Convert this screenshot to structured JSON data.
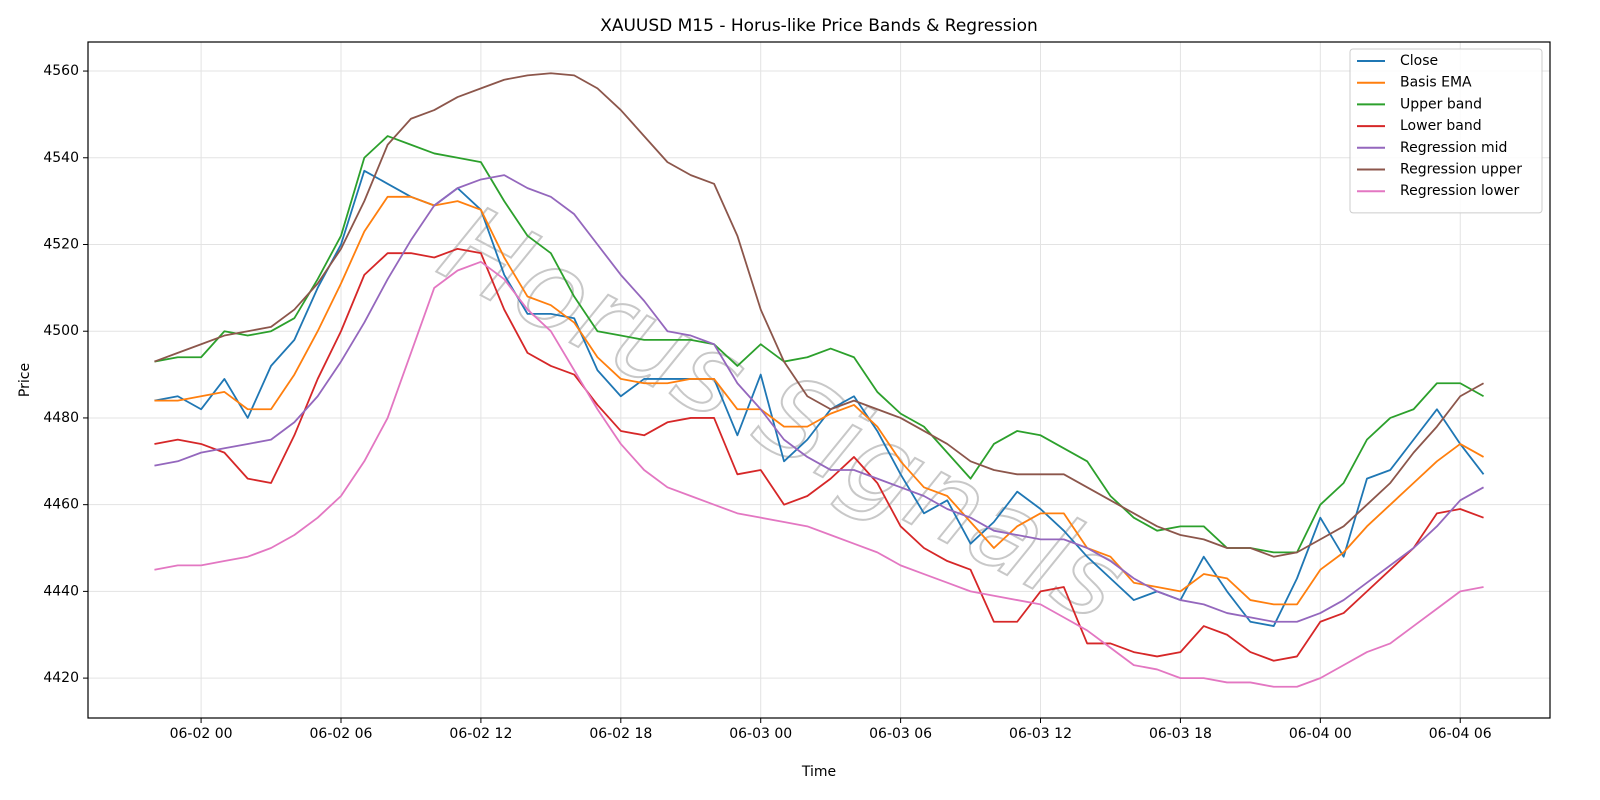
{
  "chart_data": {
    "type": "line",
    "title": "XAUUSD M15 - Horus-like Price Bands & Regression",
    "xlabel": "Time",
    "ylabel": "Price",
    "watermark": "Horus Signals",
    "grid": true,
    "legend": "upper right",
    "x": [
      "06-01 22",
      "06-01 23",
      "06-02 00",
      "06-02 01",
      "06-02 02",
      "06-02 03",
      "06-02 04",
      "06-02 05",
      "06-02 06",
      "06-02 07",
      "06-02 08",
      "06-02 09",
      "06-02 10",
      "06-02 11",
      "06-02 12",
      "06-02 13",
      "06-02 14",
      "06-02 15",
      "06-02 16",
      "06-02 17",
      "06-02 18",
      "06-02 19",
      "06-02 20",
      "06-02 21",
      "06-02 22",
      "06-02 23",
      "06-03 00",
      "06-03 01",
      "06-03 02",
      "06-03 03",
      "06-03 04",
      "06-03 05",
      "06-03 06",
      "06-03 07",
      "06-03 08",
      "06-03 09",
      "06-03 10",
      "06-03 11",
      "06-03 12",
      "06-03 13",
      "06-03 14",
      "06-03 15",
      "06-03 16",
      "06-03 17",
      "06-03 18",
      "06-03 19",
      "06-03 20",
      "06-03 21",
      "06-03 22",
      "06-03 23",
      "06-04 00",
      "06-04 01",
      "06-04 02",
      "06-04 03",
      "06-04 04",
      "06-04 05",
      "06-04 06",
      "06-04 07"
    ],
    "xticks": [
      "06-02 00",
      "06-02 06",
      "06-02 12",
      "06-02 18",
      "06-03 00",
      "06-03 06",
      "06-03 12",
      "06-03 18",
      "06-04 00",
      "06-04 06"
    ],
    "ylim": [
      4410.8,
      4566.7
    ],
    "yticks": [
      4420,
      4440,
      4460,
      4480,
      4500,
      4520,
      4540,
      4560
    ],
    "series": [
      {
        "name": "Close",
        "color": "#1f77b4",
        "values": [
          4484,
          4485,
          4482,
          4489,
          4480,
          4492,
          4498,
          4510,
          4520,
          4537,
          4534,
          4531,
          4529,
          4533,
          4528,
          4513,
          4504,
          4504,
          4503,
          4491,
          4485,
          4489,
          4489,
          4489,
          4489,
          4476,
          4490,
          4470,
          4475,
          4482,
          4485,
          4477,
          4467,
          4458,
          4461,
          4451,
          4456,
          4463,
          4459,
          4454,
          4448,
          4443,
          4438,
          4440,
          4438,
          4448,
          4440,
          4433,
          4432,
          4443,
          4457,
          4448,
          4466,
          4468,
          4475,
          4482,
          4474,
          4467
        ]
      },
      {
        "name": "Basis EMA",
        "color": "#ff7f0e",
        "values": [
          4484,
          4484,
          4485,
          4486,
          4482,
          4482,
          4490,
          4500,
          4511,
          4523,
          4531,
          4531,
          4529,
          4530,
          4528,
          4517,
          4508,
          4506,
          4502,
          4494,
          4489,
          4488,
          4488,
          4489,
          4489,
          4482,
          4482,
          4478,
          4478,
          4481,
          4483,
          4478,
          4470,
          4464,
          4462,
          4456,
          4450,
          4455,
          4458,
          4458,
          4450,
          4448,
          4442,
          4441,
          4440,
          4444,
          4443,
          4438,
          4437,
          4437,
          4445,
          4449,
          4455,
          4460,
          4465,
          4470,
          4474,
          4471
        ]
      },
      {
        "name": "Upper band",
        "color": "#2ca02c",
        "values": [
          4493,
          4494,
          4494,
          4500,
          4499,
          4500,
          4503,
          4512,
          4522,
          4540,
          4545,
          4543,
          4541,
          4540,
          4539,
          4530,
          4522,
          4518,
          4508,
          4500,
          4499,
          4498,
          4498,
          4498,
          4497,
          4492,
          4497,
          4493,
          4494,
          4496,
          4494,
          4486,
          4481,
          4478,
          4472,
          4466,
          4474,
          4477,
          4476,
          4473,
          4470,
          4462,
          4457,
          4454,
          4455,
          4455,
          4450,
          4450,
          4449,
          4449,
          4460,
          4465,
          4475,
          4480,
          4482,
          4488,
          4488,
          4485
        ]
      },
      {
        "name": "Lower band",
        "color": "#d62728",
        "values": [
          4474,
          4475,
          4474,
          4472,
          4466,
          4465,
          4476,
          4489,
          4500,
          4513,
          4518,
          4518,
          4517,
          4519,
          4518,
          4505,
          4495,
          4492,
          4490,
          4483,
          4477,
          4476,
          4479,
          4480,
          4480,
          4467,
          4468,
          4460,
          4462,
          4466,
          4471,
          4465,
          4455,
          4450,
          4447,
          4445,
          4433,
          4433,
          4440,
          4441,
          4428,
          4428,
          4426,
          4425,
          4426,
          4432,
          4430,
          4426,
          4424,
          4425,
          4433,
          4435,
          4440,
          4445,
          4450,
          4458,
          4459,
          4457
        ]
      },
      {
        "name": "Regression mid",
        "color": "#9467bd",
        "values": [
          4469,
          4470,
          4472,
          4473,
          4474,
          4475,
          4479,
          4485,
          4493,
          4502,
          4512,
          4521,
          4529,
          4533,
          4535,
          4536,
          4533,
          4531,
          4527,
          4520,
          4513,
          4507,
          4500,
          4499,
          4497,
          4488,
          4482,
          4475,
          4471,
          4468,
          4468,
          4466,
          4464,
          4462,
          4459,
          4457,
          4454,
          4453,
          4452,
          4452,
          4450,
          4447,
          4443,
          4440,
          4438,
          4437,
          4435,
          4434,
          4433,
          4433,
          4435,
          4438,
          4442,
          4446,
          4450,
          4455,
          4461,
          4464
        ]
      },
      {
        "name": "Regression upper",
        "color": "#8c564b",
        "values": [
          4493,
          4495,
          4497,
          4499,
          4500,
          4501,
          4505,
          4511,
          4519,
          4530,
          4543,
          4549,
          4551,
          4554,
          4556,
          4558,
          4559,
          4559.5,
          4559,
          4556,
          4551,
          4545,
          4539,
          4536,
          4534,
          4522,
          4505,
          4493,
          4485,
          4482,
          4484,
          4482,
          4480,
          4477,
          4474,
          4470,
          4468,
          4467,
          4467,
          4467,
          4464,
          4461,
          4458,
          4455,
          4453,
          4452,
          4450,
          4450,
          4448,
          4449,
          4452,
          4455,
          4460,
          4465,
          4472,
          4478,
          4485,
          4488
        ]
      },
      {
        "name": "Regression lower",
        "color": "#e377c2",
        "values": [
          4445,
          4446,
          4446,
          4447,
          4448,
          4450,
          4453,
          4457,
          4462,
          4470,
          4480,
          4495,
          4510,
          4514,
          4516,
          4512,
          4505,
          4500,
          4491,
          4482,
          4474,
          4468,
          4464,
          4462,
          4460,
          4458,
          4457,
          4456,
          4455,
          4453,
          4451,
          4449,
          4446,
          4444,
          4442,
          4440,
          4439,
          4438,
          4437,
          4434,
          4431,
          4427,
          4423,
          4422,
          4420,
          4420,
          4419,
          4419,
          4418,
          4418,
          4420,
          4423,
          4426,
          4428,
          4432,
          4436,
          4440,
          4441
        ]
      }
    ]
  }
}
